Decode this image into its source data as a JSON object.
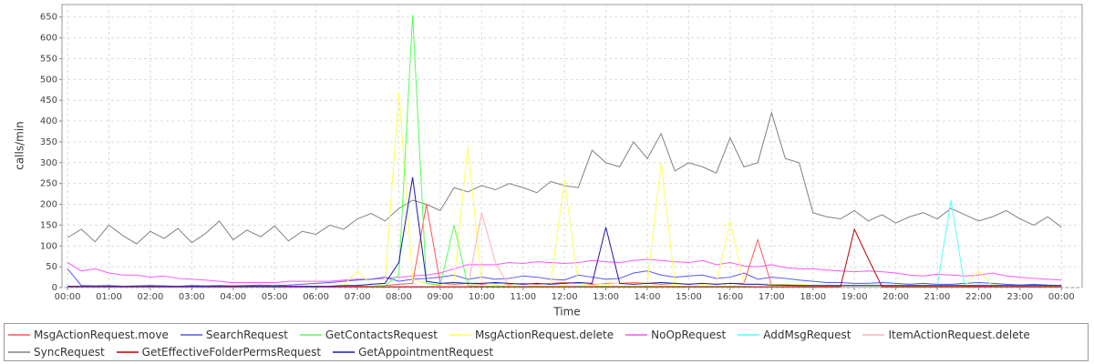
{
  "chart_data": {
    "type": "line",
    "x_label": "Time",
    "y_label": "calls/min",
    "grid": true,
    "xlim": [
      -8,
      1470
    ],
    "ylim": [
      0,
      680
    ],
    "xticks": [
      {
        "value": 0,
        "label": "00:00"
      },
      {
        "value": 60,
        "label": "01:00"
      },
      {
        "value": 120,
        "label": "02:00"
      },
      {
        "value": 180,
        "label": "03:00"
      },
      {
        "value": 240,
        "label": "04:00"
      },
      {
        "value": 300,
        "label": "05:00"
      },
      {
        "value": 360,
        "label": "06:00"
      },
      {
        "value": 420,
        "label": "07:00"
      },
      {
        "value": 480,
        "label": "08:00"
      },
      {
        "value": 540,
        "label": "09:00"
      },
      {
        "value": 600,
        "label": "10:00"
      },
      {
        "value": 660,
        "label": "11:00"
      },
      {
        "value": 720,
        "label": "12:00"
      },
      {
        "value": 780,
        "label": "13:00"
      },
      {
        "value": 840,
        "label": "14:00"
      },
      {
        "value": 900,
        "label": "15:00"
      },
      {
        "value": 960,
        "label": "16:00"
      },
      {
        "value": 1020,
        "label": "17:00"
      },
      {
        "value": 1080,
        "label": "18:00"
      },
      {
        "value": 1140,
        "label": "19:00"
      },
      {
        "value": 1200,
        "label": "20:00"
      },
      {
        "value": 1260,
        "label": "21:00"
      },
      {
        "value": 1320,
        "label": "22:00"
      },
      {
        "value": 1380,
        "label": "23:00"
      },
      {
        "value": 1440,
        "label": "00:00"
      }
    ],
    "yticks": [
      0,
      50,
      100,
      150,
      200,
      250,
      300,
      350,
      400,
      450,
      500,
      550,
      600,
      650
    ],
    "x": [
      0,
      20,
      40,
      60,
      80,
      100,
      120,
      140,
      160,
      180,
      200,
      220,
      240,
      260,
      280,
      300,
      320,
      340,
      360,
      380,
      400,
      420,
      440,
      460,
      480,
      500,
      520,
      540,
      560,
      580,
      600,
      620,
      640,
      660,
      680,
      700,
      720,
      740,
      760,
      780,
      800,
      820,
      840,
      860,
      880,
      900,
      920,
      940,
      960,
      980,
      1000,
      1020,
      1040,
      1060,
      1080,
      1100,
      1120,
      1140,
      1160,
      1180,
      1200,
      1220,
      1240,
      1260,
      1280,
      1300,
      1320,
      1340,
      1360,
      1380,
      1400,
      1420,
      1440
    ],
    "series": [
      {
        "name": "SyncRequest",
        "color": "#808080",
        "values": [
          120,
          140,
          110,
          150,
          125,
          105,
          135,
          118,
          142,
          108,
          130,
          160,
          115,
          138,
          122,
          148,
          112,
          135,
          128,
          150,
          140,
          165,
          178,
          160,
          190,
          210,
          200,
          185,
          240,
          230,
          245,
          235,
          250,
          240,
          228,
          255,
          245,
          240,
          330,
          300,
          290,
          350,
          310,
          370,
          280,
          300,
          290,
          275,
          360,
          290,
          300,
          420,
          310,
          300,
          180,
          170,
          165,
          185,
          160,
          175,
          155,
          170,
          180,
          165,
          190,
          175,
          160,
          170,
          185,
          165,
          150,
          170,
          145
        ]
      },
      {
        "name": "NoOpRequest",
        "color": "#ff55ff",
        "values": [
          60,
          40,
          45,
          35,
          30,
          30,
          25,
          28,
          22,
          20,
          18,
          15,
          12,
          12,
          12,
          12,
          15,
          15,
          15,
          15,
          18,
          20,
          20,
          22,
          25,
          28,
          30,
          35,
          45,
          55,
          55,
          55,
          60,
          58,
          62,
          60,
          58,
          60,
          65,
          62,
          60,
          65,
          68,
          65,
          62,
          60,
          65,
          55,
          60,
          52,
          50,
          55,
          48,
          45,
          45,
          42,
          40,
          38,
          40,
          38,
          35,
          30,
          28,
          32,
          30,
          28,
          30,
          35,
          28,
          25,
          22,
          20,
          18
        ]
      },
      {
        "name": "SearchRequest",
        "color": "#5555ff",
        "values": [
          45,
          5,
          4,
          5,
          3,
          4,
          5,
          4,
          3,
          5,
          4,
          5,
          4,
          5,
          6,
          5,
          6,
          8,
          10,
          12,
          15,
          18,
          20,
          25,
          15,
          20,
          22,
          25,
          30,
          20,
          25,
          20,
          22,
          28,
          25,
          20,
          18,
          30,
          25,
          20,
          22,
          35,
          40,
          30,
          25,
          28,
          30,
          22,
          25,
          35,
          20,
          25,
          22,
          18,
          15,
          12,
          12,
          10,
          10,
          12,
          10,
          8,
          10,
          8,
          8,
          10,
          12,
          10,
          8,
          6,
          8,
          6,
          5
        ]
      },
      {
        "name": "MsgActionRequest.move",
        "color": "#ff5555",
        "values": [
          2,
          2,
          2,
          2,
          2,
          2,
          2,
          2,
          2,
          2,
          2,
          2,
          2,
          2,
          2,
          2,
          2,
          2,
          2,
          2,
          3,
          3,
          3,
          5,
          8,
          10,
          200,
          10,
          8,
          10,
          8,
          10,
          8,
          10,
          8,
          10,
          12,
          10,
          8,
          10,
          10,
          12,
          10,
          8,
          10,
          8,
          10,
          8,
          10,
          10,
          115,
          6,
          5,
          5,
          5,
          4,
          4,
          4,
          4,
          4,
          4,
          4,
          4,
          4,
          4,
          4,
          4,
          4,
          3,
          3,
          3,
          3,
          3
        ]
      },
      {
        "name": "MsgActionRequest.delete",
        "color": "#ffff55",
        "values": [
          3,
          3,
          3,
          3,
          3,
          3,
          3,
          3,
          3,
          3,
          3,
          3,
          3,
          3,
          3,
          3,
          3,
          3,
          3,
          3,
          5,
          40,
          8,
          10,
          470,
          20,
          10,
          8,
          15,
          340,
          10,
          8,
          10,
          8,
          10,
          8,
          260,
          8,
          10,
          8,
          10,
          10,
          10,
          300,
          8,
          10,
          8,
          10,
          160,
          10,
          10,
          8,
          8,
          8,
          5,
          5,
          5,
          5,
          5,
          5,
          5,
          5,
          5,
          5,
          5,
          5,
          40,
          5,
          5,
          5,
          5,
          5,
          5
        ]
      },
      {
        "name": "GetContactsRequest",
        "color": "#55ff55",
        "values": [
          2,
          2,
          2,
          2,
          2,
          2,
          2,
          2,
          2,
          2,
          2,
          2,
          2,
          2,
          2,
          2,
          2,
          2,
          2,
          2,
          2,
          2,
          3,
          5,
          30,
          655,
          10,
          5,
          150,
          5,
          3,
          3,
          3,
          3,
          3,
          3,
          3,
          3,
          3,
          3,
          3,
          3,
          3,
          3,
          3,
          3,
          3,
          3,
          3,
          3,
          2,
          2,
          2,
          2,
          2,
          2,
          2,
          2,
          2,
          2,
          2,
          2,
          2,
          2,
          2,
          2,
          2,
          2,
          2,
          2,
          2,
          2,
          2
        ]
      },
      {
        "name": "AddMsgRequest",
        "color": "#55ffff",
        "values": [
          2,
          2,
          2,
          2,
          2,
          2,
          2,
          2,
          2,
          2,
          2,
          2,
          2,
          2,
          2,
          2,
          2,
          2,
          2,
          2,
          2,
          2,
          2,
          2,
          2,
          2,
          2,
          2,
          2,
          2,
          2,
          2,
          2,
          2,
          2,
          2,
          2,
          2,
          2,
          2,
          2,
          2,
          2,
          2,
          2,
          2,
          2,
          2,
          2,
          2,
          2,
          2,
          2,
          2,
          2,
          2,
          2,
          2,
          2,
          2,
          2,
          2,
          2,
          2,
          210,
          2,
          2,
          2,
          2,
          2,
          2,
          2,
          2
        ]
      },
      {
        "name": "ItemActionRequest.delete",
        "color": "#ffafaf",
        "values": [
          1,
          1,
          1,
          1,
          1,
          1,
          1,
          1,
          1,
          1,
          1,
          1,
          1,
          1,
          1,
          1,
          1,
          1,
          1,
          1,
          1,
          1,
          1,
          1,
          1,
          1,
          1,
          1,
          1,
          1,
          180,
          60,
          1,
          1,
          1,
          1,
          1,
          1,
          1,
          1,
          1,
          1,
          1,
          1,
          1,
          1,
          1,
          1,
          1,
          1,
          1,
          1,
          1,
          1,
          1,
          1,
          1,
          1,
          1,
          1,
          1,
          1,
          1,
          1,
          1,
          1,
          1,
          1,
          1,
          1,
          1,
          1,
          1
        ]
      },
      {
        "name": "GetEffectiveFolderPermsRequest",
        "color": "#c00000",
        "values": [
          2,
          2,
          2,
          2,
          2,
          2,
          2,
          2,
          2,
          2,
          2,
          2,
          2,
          2,
          2,
          2,
          2,
          2,
          2,
          2,
          2,
          2,
          2,
          2,
          2,
          2,
          2,
          2,
          2,
          2,
          2,
          2,
          2,
          2,
          2,
          2,
          2,
          2,
          2,
          2,
          2,
          2,
          2,
          2,
          2,
          2,
          2,
          2,
          2,
          2,
          2,
          2,
          2,
          2,
          2,
          2,
          2,
          140,
          70,
          2,
          2,
          2,
          2,
          2,
          2,
          2,
          2,
          2,
          2,
          2,
          2,
          2,
          2
        ]
      },
      {
        "name": "GetAppointmentRequest",
        "color": "#1a1aa8",
        "values": [
          3,
          3,
          3,
          3,
          3,
          3,
          3,
          3,
          3,
          3,
          3,
          3,
          3,
          3,
          3,
          3,
          3,
          3,
          3,
          3,
          5,
          5,
          8,
          10,
          60,
          265,
          15,
          10,
          12,
          10,
          10,
          12,
          10,
          8,
          10,
          8,
          10,
          12,
          10,
          145,
          10,
          8,
          10,
          12,
          10,
          8,
          10,
          8,
          10,
          8,
          8,
          6,
          6,
          5,
          5,
          5,
          5,
          5,
          5,
          5,
          5,
          5,
          5,
          5,
          5,
          5,
          5,
          5,
          5,
          5,
          5,
          5,
          5
        ]
      }
    ],
    "legend_order": [
      "MsgActionRequest.move",
      "SearchRequest",
      "GetContactsRequest",
      "MsgActionRequest.delete",
      "NoOpRequest",
      "AddMsgRequest",
      "ItemActionRequest.delete",
      "SyncRequest",
      "GetEffectiveFolderPermsRequest",
      "GetAppointmentRequest"
    ]
  }
}
